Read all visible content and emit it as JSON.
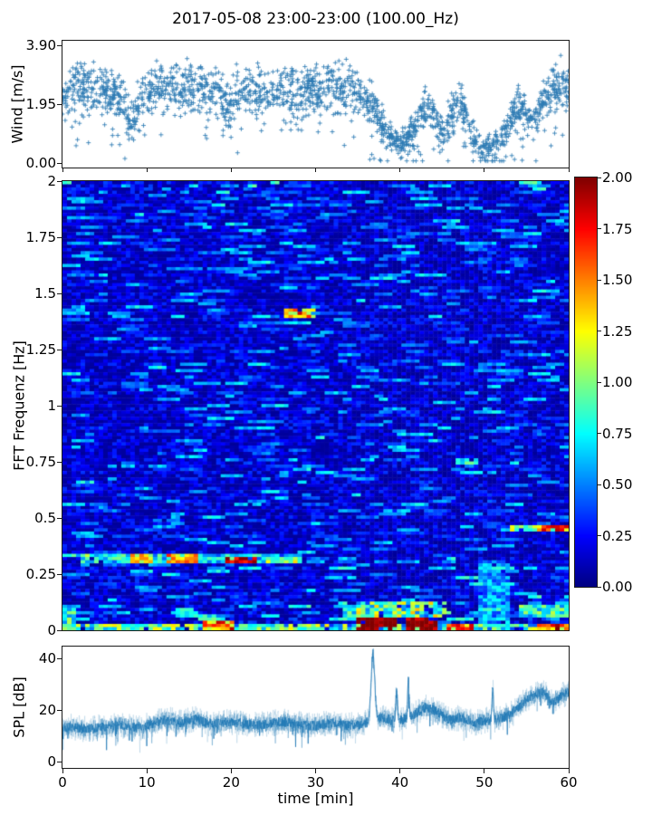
{
  "title": "2017-05-08 23:00-23:00 (100.00_Hz)",
  "colors": {
    "series_blue": "#1f77b4",
    "marker_blue": "#2e7bb4",
    "axis": "#1a1a1a",
    "background": "#ffffff",
    "colormap": "jet"
  },
  "chart_data": [
    {
      "type": "scatter",
      "name": "wind-speed-scatter",
      "ylabel": "Wind [m/s]",
      "marker": "plus",
      "ylim": [
        0,
        3.9
      ],
      "x_range_min": [
        0,
        60
      ],
      "yticks": [
        {
          "v": 0,
          "label": "0.00"
        },
        {
          "v": 1.95,
          "label": "1.95"
        },
        {
          "v": 3.9,
          "label": "3.90"
        }
      ],
      "x_step_min": 1,
      "mean_mps": [
        2.3,
        2.5,
        2.4,
        2.6,
        2.5,
        2.4,
        2.3,
        2.0,
        1.2,
        1.8,
        2.4,
        2.5,
        2.6,
        2.5,
        2.4,
        2.6,
        2.5,
        2.4,
        2.5,
        2.1,
        1.8,
        2.3,
        2.6,
        2.4,
        2.5,
        2.4,
        2.3,
        2.5,
        2.1,
        2.5,
        2.4,
        2.5,
        2.6,
        2.4,
        2.5,
        2.3,
        2.1,
        1.8,
        1.3,
        0.8,
        0.6,
        0.8,
        1.3,
        1.9,
        1.5,
        1.0,
        1.7,
        2.2,
        1.4,
        0.7,
        0.5,
        0.6,
        0.8,
        1.3,
        1.9,
        1.6,
        1.3,
        2.0,
        2.4,
        2.6,
        2.5
      ],
      "spread_mps": [
        0.7,
        0.7,
        0.7,
        0.7,
        0.7,
        0.7,
        0.7,
        0.7,
        0.55,
        0.65,
        0.7,
        0.7,
        0.7,
        0.7,
        0.7,
        0.7,
        0.7,
        0.7,
        0.7,
        0.75,
        0.8,
        0.7,
        0.7,
        0.7,
        0.7,
        0.7,
        0.7,
        0.7,
        0.85,
        0.7,
        0.7,
        0.7,
        0.7,
        0.7,
        0.7,
        0.7,
        0.65,
        0.6,
        0.5,
        0.4,
        0.35,
        0.4,
        0.5,
        0.55,
        0.5,
        0.45,
        0.55,
        0.6,
        0.5,
        0.35,
        0.3,
        0.35,
        0.4,
        0.5,
        0.55,
        0.5,
        0.45,
        0.55,
        0.65,
        0.7,
        0.7
      ]
    },
    {
      "type": "heatmap",
      "name": "fft-spectrogram",
      "ylabel": "FFT Frequenz [Hz]",
      "colormap": "jet",
      "clim": [
        0,
        2
      ],
      "ylim": [
        0,
        2
      ],
      "x_range_min": [
        0,
        60
      ],
      "yticks": [
        {
          "v": 0,
          "label": "0"
        },
        {
          "v": 0.25,
          "label": "0.25"
        },
        {
          "v": 0.5,
          "label": "0.5"
        },
        {
          "v": 0.75,
          "label": "0.75"
        },
        {
          "v": 1,
          "label": "1"
        },
        {
          "v": 1.25,
          "label": "1.25"
        },
        {
          "v": 1.5,
          "label": "1.5"
        },
        {
          "v": 1.75,
          "label": "1.75"
        },
        {
          "v": 2,
          "label": "2"
        }
      ],
      "colorbar_ticks": [
        {
          "v": 0,
          "label": "0.00"
        },
        {
          "v": 0.25,
          "label": "0.25"
        },
        {
          "v": 0.5,
          "label": "0.50"
        },
        {
          "v": 0.75,
          "label": "0.75"
        },
        {
          "v": 1,
          "label": "1.00"
        },
        {
          "v": 1.25,
          "label": "1.25"
        },
        {
          "v": 1.5,
          "label": "1.50"
        },
        {
          "v": 1.75,
          "label": "1.75"
        },
        {
          "v": 2,
          "label": "2.00"
        }
      ],
      "background_level": 0.18,
      "features_note": "bright regions as [t0_min,t1_min,f0_Hz,f1_Hz,value,value_jitter]",
      "features": [
        [
          0,
          60,
          0,
          0.035,
          0.85,
          0.45
        ],
        [
          16.5,
          20.5,
          0,
          0.04,
          1.5,
          0.4
        ],
        [
          35,
          39.5,
          0,
          0.055,
          2,
          0.15
        ],
        [
          40.5,
          44.5,
          0,
          0.05,
          2,
          0.2
        ],
        [
          35,
          45.5,
          0.055,
          0.13,
          0.95,
          0.45
        ],
        [
          45.8,
          48.6,
          0,
          0.035,
          1.5,
          0.45
        ],
        [
          56.5,
          60,
          0,
          0.035,
          1.6,
          0.4
        ],
        [
          49.5,
          53.2,
          0,
          0.3,
          0.55,
          0.22
        ],
        [
          2,
          28.5,
          0.292,
          0.338,
          0.7,
          0.3
        ],
        [
          8,
          10.8,
          0.3,
          0.334,
          1.3,
          0.3
        ],
        [
          12.5,
          16.2,
          0.298,
          0.336,
          1.45,
          0.3
        ],
        [
          19.5,
          23,
          0.302,
          0.332,
          1.85,
          0.25
        ],
        [
          24,
          28.5,
          0.3,
          0.332,
          1.05,
          0.3
        ],
        [
          26.2,
          29.8,
          1.392,
          1.432,
          1.45,
          0.45
        ],
        [
          53,
          60,
          0.44,
          0.468,
          1.15,
          0.4
        ],
        [
          57,
          60,
          0.443,
          0.462,
          1.8,
          0.3
        ],
        [
          46.5,
          49.2,
          0.742,
          0.772,
          0.8,
          0.25
        ],
        [
          0,
          3.5,
          0.322,
          0.345,
          0.9,
          0.3
        ],
        [
          33,
          36.5,
          0.05,
          0.105,
          0.85,
          0.35
        ],
        [
          54,
          60,
          0.055,
          0.12,
          0.8,
          0.35
        ],
        [
          0,
          1.5,
          0,
          0.1,
          0.8,
          0.3
        ]
      ]
    },
    {
      "type": "line",
      "name": "spl-timeseries",
      "ylabel": "SPL [dB]",
      "xlabel": "time [min]",
      "ylim": [
        0,
        40
      ],
      "x_range_min": [
        0,
        60
      ],
      "yticks": [
        {
          "v": 0,
          "label": "0"
        },
        {
          "v": 20,
          "label": "20"
        },
        {
          "v": 40,
          "label": "40"
        }
      ],
      "xticks": [
        {
          "v": 0,
          "label": "0"
        },
        {
          "v": 10,
          "label": "10"
        },
        {
          "v": 20,
          "label": "20"
        },
        {
          "v": 30,
          "label": "30"
        },
        {
          "v": 40,
          "label": "40"
        },
        {
          "v": 50,
          "label": "50"
        },
        {
          "v": 60,
          "label": "60"
        }
      ],
      "x_step_min": 1,
      "mean_db": [
        13,
        13.5,
        13,
        12.5,
        13,
        13.5,
        14,
        14,
        13.5,
        13,
        14,
        15,
        16,
        16,
        15,
        16,
        16.5,
        15,
        14.5,
        15,
        15.5,
        15,
        14.5,
        14,
        14.5,
        15,
        15.5,
        15,
        14.5,
        14,
        14,
        14.5,
        15,
        14.5,
        14,
        14,
        15,
        16,
        17,
        16,
        16,
        17,
        19,
        21,
        20,
        18,
        16,
        17,
        16,
        15,
        16,
        16,
        17,
        18,
        21,
        24,
        26,
        27,
        23,
        25,
        27
      ],
      "noise_db": 3.2,
      "spikes": [
        {
          "t": 36.8,
          "amp": 26,
          "w": 0.3
        },
        {
          "t": 39.6,
          "amp": 11,
          "w": 0.15
        },
        {
          "t": 41.0,
          "amp": 14,
          "w": 0.12
        },
        {
          "t": 51.0,
          "amp": 12,
          "w": 0.12
        }
      ]
    }
  ]
}
